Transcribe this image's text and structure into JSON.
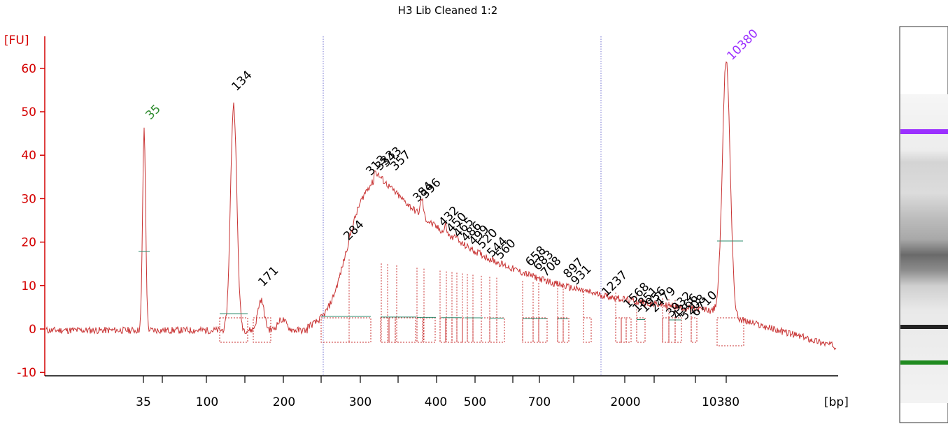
{
  "chart_data": {
    "type": "line",
    "title": "H3 Lib Cleaned 1:2",
    "ylabel": "[FU]",
    "xlabel": "[bp]",
    "ylim": [
      -11,
      66
    ],
    "y_ticks": [
      -10,
      0,
      10,
      20,
      30,
      40,
      50,
      60
    ],
    "x_tick_labels": [
      "35",
      "100",
      "200",
      "300",
      "400",
      "500",
      "700",
      "2000",
      "10380"
    ],
    "markers": [
      {
        "label": "35",
        "bp": 35,
        "fu": 46,
        "color": "#2e8b2e"
      },
      {
        "label": "10380",
        "bp": 10380,
        "fu": 60,
        "color": "#9b30ff"
      }
    ],
    "peaks": [
      {
        "label": "134",
        "fu": 52
      },
      {
        "label": "171",
        "fu": 7
      },
      {
        "label": "284",
        "fu": 20
      },
      {
        "label": "313",
        "fu": 34
      },
      {
        "label": "333",
        "fu": 36
      },
      {
        "label": "343",
        "fu": 36
      },
      {
        "label": "357",
        "fu": 35
      },
      {
        "label": "384",
        "fu": 29
      },
      {
        "label": "396",
        "fu": 29
      },
      {
        "label": "432",
        "fu": 22
      },
      {
        "label": "450",
        "fu": 21
      },
      {
        "label": "465",
        "fu": 20
      },
      {
        "label": "486",
        "fu": 19
      },
      {
        "label": "499",
        "fu": 18
      },
      {
        "label": "520",
        "fu": 17
      },
      {
        "label": "544",
        "fu": 16
      },
      {
        "label": "560",
        "fu": 15
      },
      {
        "label": "658",
        "fu": 13
      },
      {
        "label": "683",
        "fu": 13
      },
      {
        "label": "708",
        "fu": 12
      },
      {
        "label": "897",
        "fu": 12
      },
      {
        "label": "931",
        "fu": 10
      },
      {
        "label": "1237",
        "fu": 6
      },
      {
        "label": "1568",
        "fu": 4
      },
      {
        "label": "1851",
        "fu": 3
      },
      {
        "label": "1956",
        "fu": 3
      },
      {
        "label": "2479",
        "fu": 4
      },
      {
        "label": "3932",
        "fu": 3
      },
      {
        "label": "4366",
        "fu": 3
      },
      {
        "label": "5208",
        "fu": 2
      },
      {
        "label": "6710",
        "fu": 1
      }
    ],
    "region_boundaries": [
      "250",
      "1500"
    ],
    "grid": false,
    "legend": "none"
  },
  "gel": {
    "upper_marker_color": "#9b30ff",
    "lower_marker_color": "#1f8a1f"
  }
}
